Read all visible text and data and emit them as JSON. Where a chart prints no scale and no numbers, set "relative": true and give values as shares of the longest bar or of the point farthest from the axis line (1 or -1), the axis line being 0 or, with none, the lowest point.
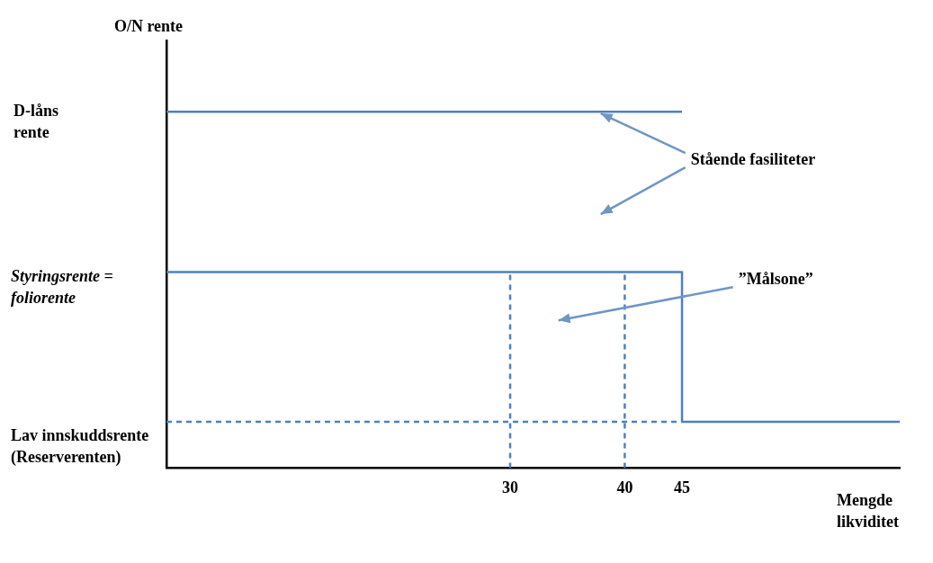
{
  "chart_data": {
    "type": "line",
    "relative": true,
    "ylabel": "O/N rente",
    "xlabel": "Mengde likviditet",
    "xlim": [
      0,
      64
    ],
    "xticks": [
      30,
      40,
      45
    ],
    "grid": false,
    "legend": false,
    "marker": "none",
    "line_style": "solid",
    "series": [
      {
        "color": "#4f81bd",
        "x": [
          0,
          45
        ],
        "values": [
          1,
          1
        ]
      },
      {
        "color": "#4f81bd",
        "x": [
          0,
          45,
          45,
          64
        ],
        "values": [
          0.55,
          0.55,
          0.13,
          0.13
        ]
      },
      {
        "color": "#4f81bd",
        "x": [
          0,
          45
        ],
        "values": [
          0.13,
          0.13
        ],
        "line_style": "dashed"
      },
      {
        "color": "#4f81bd",
        "x": [
          30,
          30
        ],
        "values": [
          0,
          0.55
        ],
        "line_style": "dashed"
      },
      {
        "color": "#4f81bd",
        "x": [
          40,
          40
        ],
        "values": [
          0,
          0.55
        ],
        "line_style": "dashed"
      }
    ],
    "annotations": [
      "D-låns rente",
      "Styringsrente = foliorente",
      "Lav innskuddsrente (Reserverenten)",
      "Stående fasiliteter",
      "”Målsone”"
    ]
  }
}
